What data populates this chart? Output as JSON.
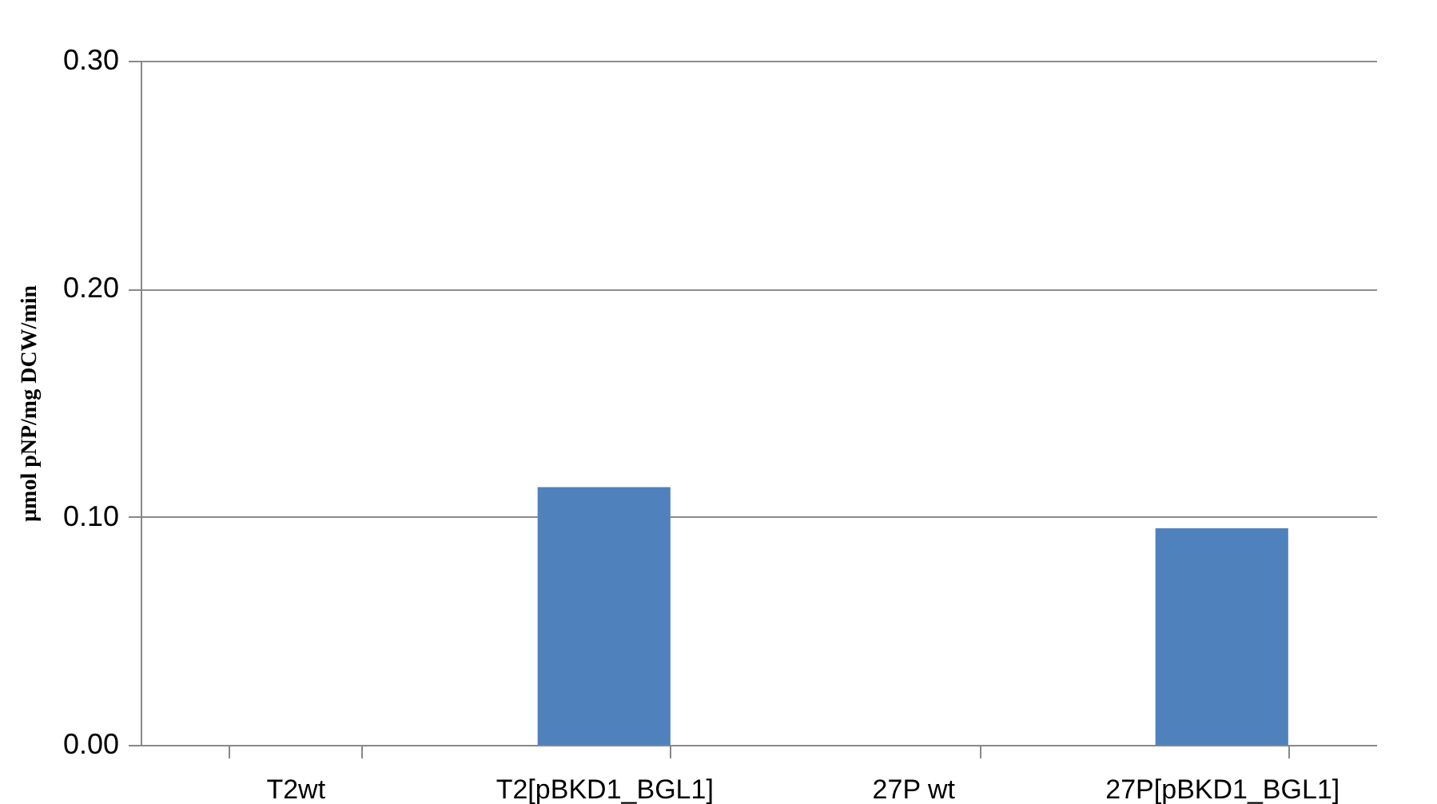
{
  "chart_data": {
    "type": "bar",
    "ylabel": "µmol pNP/mg DCW/min",
    "categories": [
      "T2wt",
      "T2[pBKD1_BGL1]",
      "27P wt",
      "27P[pBKD1_BGL1]"
    ],
    "values": [
      0,
      0.113,
      0,
      0.095
    ],
    "color": "#4f81bd",
    "ylim": [
      0,
      0.3
    ],
    "yticks": [
      {
        "value": 0,
        "label": "0.00"
      },
      {
        "value": 0.1,
        "label": "0.10"
      },
      {
        "value": 0.2,
        "label": "0.20"
      },
      {
        "value": 0.3,
        "label": "0.30"
      }
    ],
    "grid": "y"
  }
}
